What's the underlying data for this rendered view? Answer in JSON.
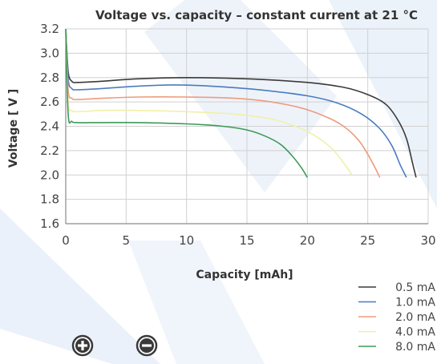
{
  "chart_data": {
    "type": "line",
    "title": "Voltage vs. capacity – constant current at 21 °C",
    "xlabel": "Capacity [mAh]",
    "ylabel": "Voltage [ V ]",
    "xlim": [
      0,
      30
    ],
    "ylim": [
      1.6,
      3.2
    ],
    "x_ticks": [
      "0",
      "5",
      "10",
      "15",
      "20",
      "25",
      "30"
    ],
    "y_ticks": [
      "1.6",
      "1.8",
      "2.0",
      "2.2",
      "2.4",
      "2.6",
      "2.8",
      "3.0",
      "3.2"
    ],
    "grid": true,
    "legend_position": "bottom-right",
    "series": [
      {
        "name": "0.5 mA",
        "color": "#3a3a3a",
        "x": [
          0,
          0.2,
          0.5,
          1,
          3,
          6,
          10,
          15,
          20,
          23,
          25,
          26.5,
          27.5,
          28.2,
          28.7,
          29.0
        ],
        "y": [
          3.2,
          2.85,
          2.77,
          2.76,
          2.77,
          2.79,
          2.8,
          2.79,
          2.76,
          2.72,
          2.66,
          2.58,
          2.45,
          2.3,
          2.1,
          1.98
        ]
      },
      {
        "name": "1.0 mA",
        "color": "#4a7cbf",
        "x": [
          0,
          0.2,
          0.5,
          1,
          3,
          6,
          9,
          12,
          16,
          20,
          22.5,
          24.5,
          26,
          27,
          27.7,
          28.2
        ],
        "y": [
          3.2,
          2.79,
          2.71,
          2.7,
          2.71,
          2.73,
          2.74,
          2.73,
          2.7,
          2.65,
          2.59,
          2.5,
          2.38,
          2.24,
          2.08,
          1.98
        ]
      },
      {
        "name": "2.0 mA",
        "color": "#ee9b7c",
        "x": [
          0,
          0.2,
          0.5,
          1,
          3,
          6,
          10,
          14,
          17,
          19.5,
          21.5,
          23,
          24.2,
          25,
          25.6,
          26.0
        ],
        "y": [
          3.2,
          2.7,
          2.63,
          2.62,
          2.63,
          2.64,
          2.64,
          2.63,
          2.6,
          2.55,
          2.48,
          2.4,
          2.29,
          2.17,
          2.06,
          1.98
        ]
      },
      {
        "name": "4.0 mA",
        "color": "#f0f0a8",
        "x": [
          0,
          0.2,
          0.5,
          1,
          3,
          6,
          10,
          14,
          17,
          19,
          20.5,
          22,
          23,
          23.7
        ],
        "y": [
          3.2,
          2.6,
          2.53,
          2.52,
          2.53,
          2.53,
          2.52,
          2.5,
          2.46,
          2.4,
          2.33,
          2.22,
          2.1,
          2.0
        ]
      },
      {
        "name": "8.0 mA",
        "color": "#3e9a58",
        "x": [
          0,
          0.2,
          0.5,
          1,
          3,
          6,
          10,
          13,
          15,
          16.5,
          17.8,
          18.8,
          19.5,
          20.0
        ],
        "y": [
          3.2,
          2.5,
          2.44,
          2.43,
          2.43,
          2.43,
          2.42,
          2.4,
          2.37,
          2.32,
          2.25,
          2.15,
          2.06,
          1.98
        ]
      }
    ]
  },
  "icons": {
    "plus": "plus-circle-icon",
    "minus": "minus-circle-icon"
  }
}
